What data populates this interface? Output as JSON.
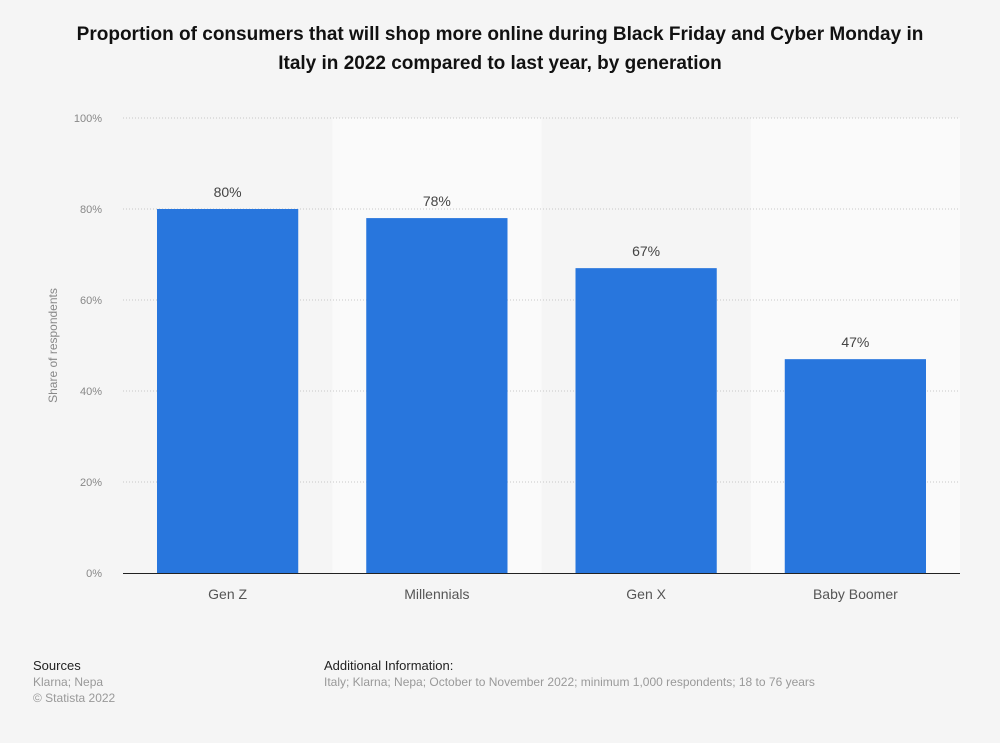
{
  "chart_data": {
    "type": "bar",
    "title": "Proportion of consumers that will shop more online during Black Friday and Cyber Monday in Italy in 2022 compared to last year, by generation",
    "categories": [
      "Gen Z",
      "Millennials",
      "Gen X",
      "Baby Boomer"
    ],
    "values": [
      80,
      78,
      67,
      47
    ],
    "data_labels": [
      "80%",
      "78%",
      "67%",
      "47%"
    ],
    "xlabel": "",
    "ylabel": "Share of respondents",
    "ylim": [
      0,
      100
    ],
    "yticks": [
      0,
      20,
      40,
      60,
      80,
      100
    ],
    "ytick_labels": [
      "0%",
      "20%",
      "40%",
      "60%",
      "80%",
      "100%"
    ],
    "grid": true,
    "bar_color": "#2876dd"
  },
  "footer": {
    "sources_heading": "Sources",
    "sources": "Klarna; Nepa",
    "copyright": "© Statista 2022",
    "additional_heading": "Additional Information:",
    "additional": "Italy; Klarna; Nepa; October to November 2022; minimum 1,000 respondents; 18 to 76 years"
  }
}
